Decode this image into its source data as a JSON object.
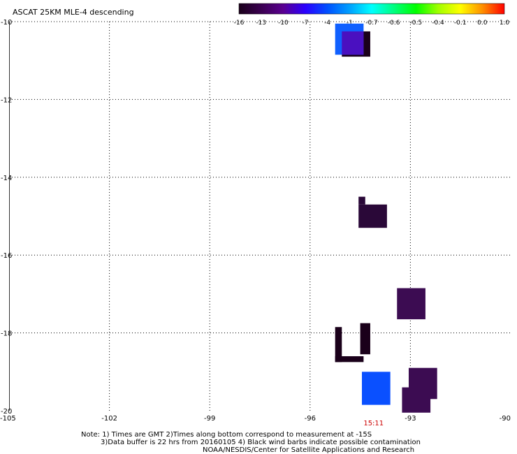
{
  "title": "ASCAT 25KM MLE-4 descending",
  "colorbar": {
    "stops": [
      "#1a001a",
      "#3a0050",
      "#5a0090",
      "#2a00ff",
      "#0050ff",
      "#00a0ff",
      "#00ffff",
      "#00ff80",
      "#00ff00",
      "#a0ff00",
      "#ffff00",
      "#ff9000",
      "#ff0000"
    ],
    "labels": [
      "-16",
      "-13",
      "-10",
      "-7",
      "-4",
      "-1",
      "-0.7",
      "-0.6",
      "-0.5",
      "-0.4",
      "-0.1",
      "0.0",
      "1.0"
    ]
  },
  "map": {
    "lon_range": [
      -105,
      -90
    ],
    "lat_range": [
      -20,
      -10
    ],
    "lon_ticks": [
      {
        "value": -105,
        "label": "-105"
      },
      {
        "value": -102,
        "label": "-102"
      },
      {
        "value": -99,
        "label": "-99"
      },
      {
        "value": -96,
        "label": "-96"
      },
      {
        "value": -93,
        "label": "-93"
      },
      {
        "value": -90,
        "label": "-90"
      }
    ],
    "lat_ticks": [
      {
        "value": -10,
        "label": "-10"
      },
      {
        "value": -12,
        "label": "-12"
      },
      {
        "value": -14,
        "label": "-14"
      },
      {
        "value": -16,
        "label": "-16"
      },
      {
        "value": -18,
        "label": "-18"
      },
      {
        "value": -20,
        "label": "-20"
      }
    ],
    "cells": [
      {
        "lon0": -95.05,
        "lon1": -94.2,
        "lat0": -10.9,
        "lat1": -10.25,
        "color": "#1a001a"
      },
      {
        "lon0": -95.25,
        "lon1": -94.4,
        "lat0": -10.85,
        "lat1": -10.05,
        "color": "#1060ff"
      },
      {
        "lon0": -95.05,
        "lon1": -94.4,
        "lat0": -10.85,
        "lat1": -10.25,
        "color": "#4a10c0"
      },
      {
        "lon0": -94.55,
        "lon1": -93.7,
        "lat0": -15.3,
        "lat1": -14.7,
        "color": "#2a0838"
      },
      {
        "lon0": -94.55,
        "lon1": -94.35,
        "lat0": -14.7,
        "lat1": -14.5,
        "color": "#2a0838"
      },
      {
        "lon0": -93.4,
        "lon1": -92.55,
        "lat0": -17.65,
        "lat1": -16.85,
        "color": "#3c0c52"
      },
      {
        "lon0": -94.5,
        "lon1": -94.2,
        "lat0": -18.55,
        "lat1": -17.75,
        "color": "#1a001a"
      },
      {
        "lon0": -95.25,
        "lon1": -95.05,
        "lat0": -18.75,
        "lat1": -17.85,
        "color": "#1a001a"
      },
      {
        "lon0": -95.25,
        "lon1": -94.4,
        "lat0": -18.75,
        "lat1": -18.6,
        "color": "#1a001a"
      },
      {
        "lon0": -94.45,
        "lon1": -93.6,
        "lat0": -19.85,
        "lat1": -19.0,
        "color": "#0a50ff"
      },
      {
        "lon0": -93.25,
        "lon1": -92.4,
        "lat0": -20.05,
        "lat1": -19.4,
        "color": "#3c0c52"
      },
      {
        "lon0": -93.05,
        "lon1": -92.2,
        "lat0": -19.7,
        "lat1": -18.9,
        "color": "#3c0c52"
      }
    ],
    "time_label": {
      "text": "15:11",
      "lon": -94.1,
      "color": "#cc0000"
    }
  },
  "notes": [
    "Note: 1) Times are GMT 2)Times along bottom correspond to measurement at -15S",
    "3)Data buffer is 22 hrs from 20160105 4) Black wind barbs indicate possible contamination",
    "NOAA/NESDIS/Center for Satellite Applications and Research"
  ]
}
